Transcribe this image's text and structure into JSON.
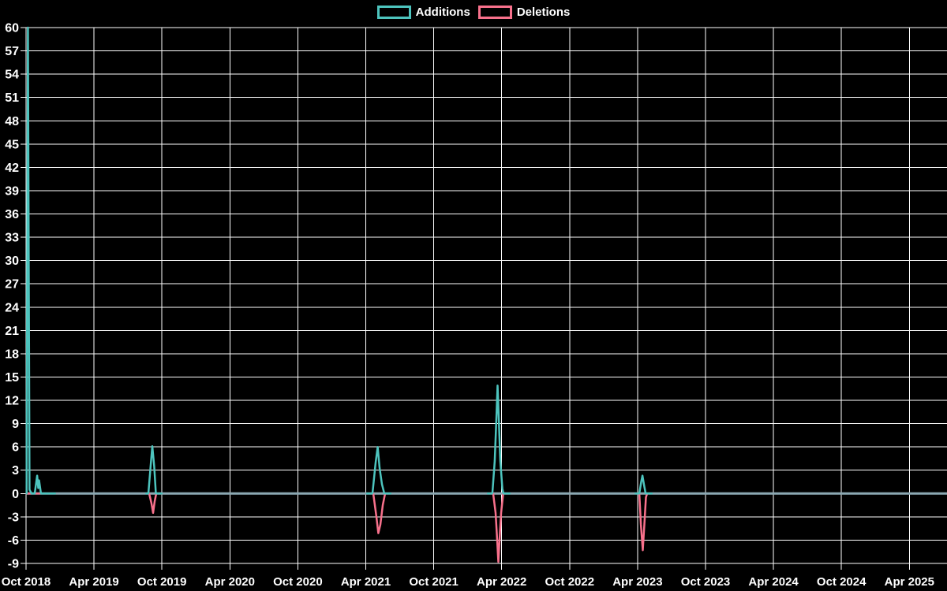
{
  "legend": {
    "items": [
      {
        "id": "additions",
        "label": "Additions",
        "color": "#4DC4BE"
      },
      {
        "id": "deletions",
        "label": "Deletions",
        "color": "#F8718C"
      }
    ]
  },
  "chart_data": {
    "type": "line",
    "title": "",
    "x_axis": {
      "unit": "months since Oct 2018",
      "tick_labels": [
        "Oct 2018",
        "Apr 2019",
        "Oct 2019",
        "Apr 2020",
        "Oct 2020",
        "Apr 2021",
        "Oct 2021",
        "Apr 2022",
        "Oct 2022",
        "Apr 2023",
        "Oct 2023",
        "Apr 2024",
        "Oct 2024",
        "Apr 2025"
      ],
      "tick_month_offsets": [
        0,
        6,
        12,
        18,
        24,
        30,
        36,
        42,
        48,
        54,
        60,
        66,
        72,
        78
      ]
    },
    "y_axis": {
      "min": -9,
      "max": 60,
      "step": 3,
      "tick_labels": [
        "60",
        "57",
        "54",
        "51",
        "48",
        "45",
        "42",
        "39",
        "36",
        "33",
        "30",
        "27",
        "24",
        "21",
        "18",
        "15",
        "12",
        "9",
        "6",
        "3",
        "0",
        "-3",
        "-6",
        "-9"
      ]
    },
    "grid": true,
    "legend_position": "top-center",
    "colors": {
      "background": "#000000",
      "grid": "#FFFFFF",
      "zero_baseline": "#8BA8B2",
      "text": "#FFFFFF",
      "additions": "#4DC4BE",
      "deletions": "#F8718C"
    },
    "series": [
      {
        "name": "Additions",
        "color": "#4DC4BE",
        "baseline_value": 0,
        "spike_segments": [
          [
            [
              0.05,
              0
            ],
            [
              0.17,
              60
            ],
            [
              0.31,
              0.5
            ],
            [
              0.49,
              0
            ],
            [
              0.77,
              0
            ],
            [
              0.98,
              2.3
            ],
            [
              1.08,
              0.7
            ],
            [
              1.15,
              1.7
            ],
            [
              1.32,
              0
            ],
            [
              2.58,
              0
            ]
          ],
          [
            [
              10.59,
              0
            ],
            [
              10.8,
              0
            ],
            [
              11.01,
              3.7
            ],
            [
              11.15,
              6.1
            ],
            [
              11.32,
              3.5
            ],
            [
              11.46,
              0
            ],
            [
              11.99,
              0
            ]
          ],
          [
            [
              30.1,
              0
            ],
            [
              30.59,
              0
            ],
            [
              30.87,
              4
            ],
            [
              31.05,
              6
            ],
            [
              31.22,
              3.3
            ],
            [
              31.43,
              1.2
            ],
            [
              31.64,
              0
            ],
            [
              32.2,
              0
            ]
          ],
          [
            [
              40.77,
              0
            ],
            [
              41.18,
              0
            ],
            [
              41.39,
              4.2
            ],
            [
              41.53,
              9.7
            ],
            [
              41.64,
              13.9
            ],
            [
              41.74,
              9.7
            ],
            [
              41.88,
              4.2
            ],
            [
              42.06,
              0.6
            ],
            [
              42.16,
              0
            ],
            [
              42.72,
              0
            ]
          ],
          [
            [
              53.8,
              0
            ],
            [
              54.15,
              0
            ],
            [
              54.32,
              1.5
            ],
            [
              54.43,
              2.3
            ],
            [
              54.57,
              1.1
            ],
            [
              54.71,
              0
            ],
            [
              55.26,
              0
            ]
          ]
        ]
      },
      {
        "name": "Deletions",
        "color": "#F8718C",
        "baseline_value": 0,
        "spike_segments": [
          [
            [
              0.05,
              0
            ],
            [
              2.58,
              0
            ]
          ],
          [
            [
              10.59,
              0
            ],
            [
              10.87,
              0
            ],
            [
              11.08,
              -1.3
            ],
            [
              11.22,
              -2.5
            ],
            [
              11.36,
              -1
            ],
            [
              11.5,
              0
            ],
            [
              11.99,
              0
            ]
          ],
          [
            [
              30.1,
              0
            ],
            [
              30.66,
              0
            ],
            [
              30.94,
              -3
            ],
            [
              31.11,
              -5.1
            ],
            [
              31.29,
              -4
            ],
            [
              31.5,
              -1.5
            ],
            [
              31.71,
              0
            ],
            [
              32.2,
              0
            ]
          ],
          [
            [
              40.77,
              0
            ],
            [
              41.25,
              0
            ],
            [
              41.46,
              -2.5
            ],
            [
              41.6,
              -6
            ],
            [
              41.71,
              -8.8
            ],
            [
              41.81,
              -6
            ],
            [
              41.95,
              -2.5
            ],
            [
              42.13,
              0
            ],
            [
              42.72,
              0
            ]
          ],
          [
            [
              53.8,
              0
            ],
            [
              54.15,
              0
            ],
            [
              54.29,
              -4
            ],
            [
              54.46,
              -7.3
            ],
            [
              54.6,
              -4
            ],
            [
              54.74,
              -0.5
            ],
            [
              54.84,
              0
            ],
            [
              55.26,
              0
            ]
          ]
        ]
      }
    ],
    "notable_events": [
      {
        "period": "Oct 2018",
        "additions": 60,
        "deletions": 0
      },
      {
        "period": "Nov 2018",
        "additions": 2,
        "deletions": 0
      },
      {
        "period": "Sep 2019",
        "additions": 6,
        "deletions": -2.5
      },
      {
        "period": "May 2021",
        "additions": 6,
        "deletions": -5
      },
      {
        "period": "Apr 2022",
        "additions": 14,
        "deletions": -9
      },
      {
        "period": "Apr 2023",
        "additions": 2,
        "deletions": -7
      }
    ]
  }
}
